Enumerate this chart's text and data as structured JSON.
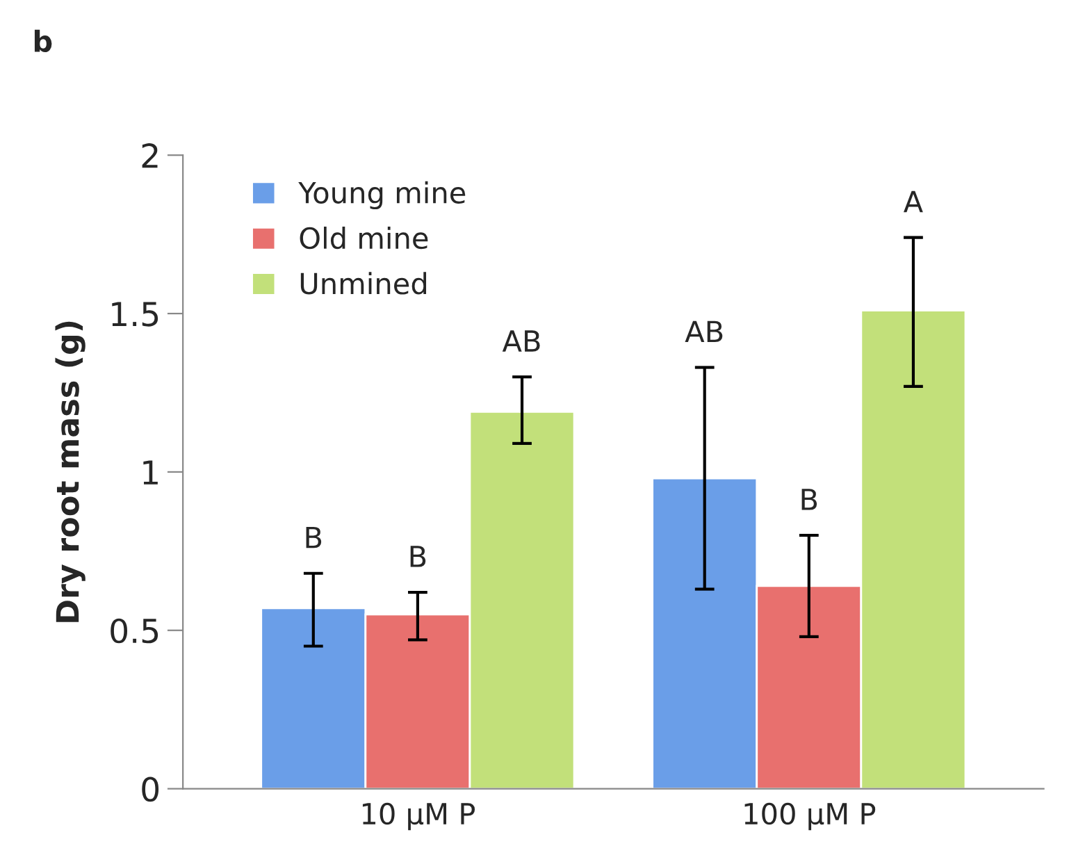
{
  "chart_data": {
    "type": "bar",
    "title": "b",
    "ylabel": "Dry root mass (g)",
    "categories": [
      "10 µM P",
      "100 µM P"
    ],
    "series": [
      {
        "name": "Young mine",
        "color": "#6a9ee8",
        "values": [
          0.57,
          0.98
        ],
        "errors": [
          [
            0.45,
            0.68
          ],
          [
            0.63,
            1.33
          ]
        ]
      },
      {
        "name": "Old mine",
        "color": "#e8706e",
        "values": [
          0.55,
          0.64
        ],
        "errors": [
          [
            0.47,
            0.62
          ],
          [
            0.48,
            0.8
          ]
        ]
      },
      {
        "name": "Unmined",
        "color": "#c2e07a",
        "values": [
          1.19,
          1.51
        ],
        "errors": [
          [
            1.09,
            1.3
          ],
          [
            1.27,
            1.74
          ]
        ]
      }
    ],
    "annotations": [
      "B",
      "B",
      "AB",
      "AB",
      "B",
      "A"
    ],
    "ylim": [
      0,
      2
    ],
    "yticks": [
      0,
      0.5,
      1,
      1.5,
      2
    ],
    "grid": false,
    "legend": "top left"
  }
}
